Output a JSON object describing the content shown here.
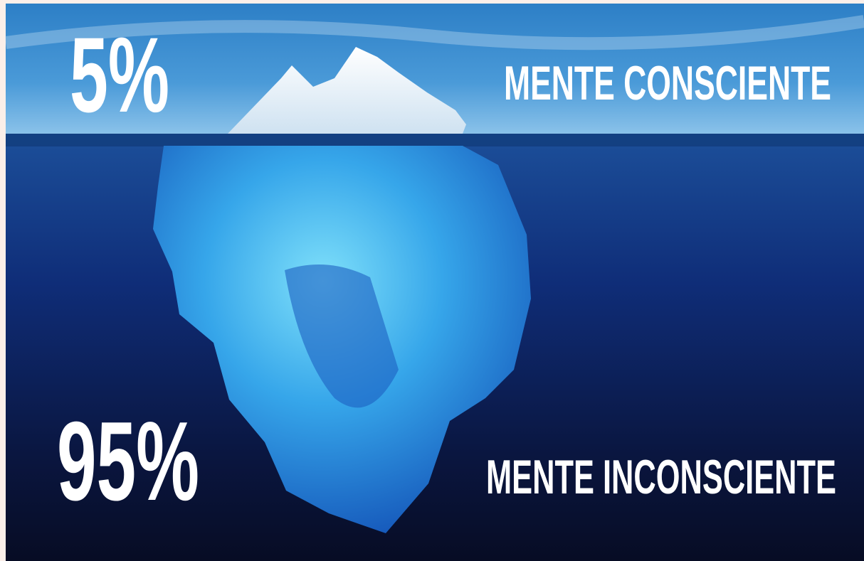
{
  "top": {
    "percent": "5%",
    "label": "MENTE CONSCIENTE"
  },
  "bottom": {
    "percent": "95%",
    "label": "MENTE INCONSCIENTE"
  }
}
